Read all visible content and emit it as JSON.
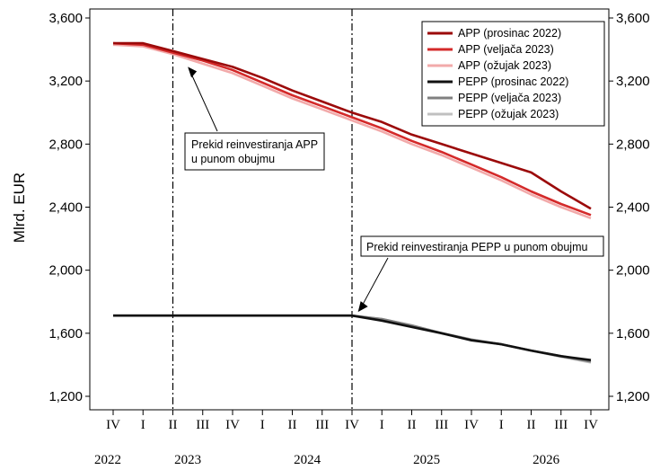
{
  "chart_data": {
    "type": "line",
    "ylabel": "Mlrd. EUR",
    "ylim": [
      1200,
      3600
    ],
    "yticks": [
      1200,
      1600,
      2000,
      2400,
      2800,
      3200,
      3600
    ],
    "ytick_labels": [
      "1,200",
      "1,600",
      "2,000",
      "2,400",
      "2,800",
      "3,200",
      "3,600"
    ],
    "quarters": [
      "IV",
      "I",
      "II",
      "III",
      "IV",
      "I",
      "II",
      "III",
      "IV",
      "I",
      "II",
      "III",
      "IV",
      "I",
      "II",
      "III",
      "IV"
    ],
    "years": [
      "2022",
      "2023",
      "2024",
      "2025",
      "2026"
    ],
    "legend_position": "top-right",
    "series": [
      {
        "name": "APP (prosinac 2022)",
        "color": "#9b0a0a",
        "values": [
          3440,
          3440,
          3390,
          3340,
          3290,
          3220,
          3140,
          3070,
          3000,
          2940,
          2860,
          2800,
          2740,
          2680,
          2620,
          2500,
          2390
        ]
      },
      {
        "name": "APP (veljača 2023)",
        "color": "#d42a2a",
        "values": [
          3440,
          3430,
          3380,
          3330,
          3270,
          3190,
          3110,
          3040,
          2970,
          2900,
          2820,
          2750,
          2670,
          2590,
          2500,
          2420,
          2350
        ]
      },
      {
        "name": "APP (ožujak 2023)",
        "color": "#f2aaaa",
        "values": [
          3430,
          3420,
          3370,
          3310,
          3250,
          3170,
          3090,
          3020,
          2950,
          2880,
          2800,
          2730,
          2650,
          2570,
          2480,
          2400,
          2330
        ]
      },
      {
        "name": "PEPP (prosinac 2022)",
        "color": "#111111",
        "values": [
          1712,
          1712,
          1712,
          1712,
          1712,
          1712,
          1712,
          1712,
          1712,
          1680,
          1640,
          1600,
          1555,
          1530,
          1490,
          1455,
          1430
        ]
      },
      {
        "name": "PEPP (veljača 2023)",
        "color": "#808080",
        "values": [
          1712,
          1712,
          1712,
          1712,
          1712,
          1712,
          1712,
          1712,
          1712,
          1690,
          1650,
          1600,
          1560,
          1530,
          1490,
          1455,
          1420
        ]
      },
      {
        "name": "PEPP (ožujak 2023)",
        "color": "#c0c0c0",
        "values": [
          1712,
          1712,
          1712,
          1712,
          1712,
          1712,
          1712,
          1712,
          1712,
          1690,
          1650,
          1600,
          1560,
          1530,
          1490,
          1450,
          1415
        ]
      }
    ],
    "vlines_at_index": [
      2,
      8
    ],
    "annotations": [
      {
        "text_lines": [
          "Prekid reinvestiranja APP",
          "u punom obujmu"
        ],
        "arrow_to_index": 2.5,
        "arrow_to_value": 3290
      },
      {
        "text_lines": [
          "Prekid reinvestiranja PEPP u punom obujmu"
        ],
        "arrow_to_index": 8.2,
        "arrow_to_value": 1712
      }
    ]
  }
}
